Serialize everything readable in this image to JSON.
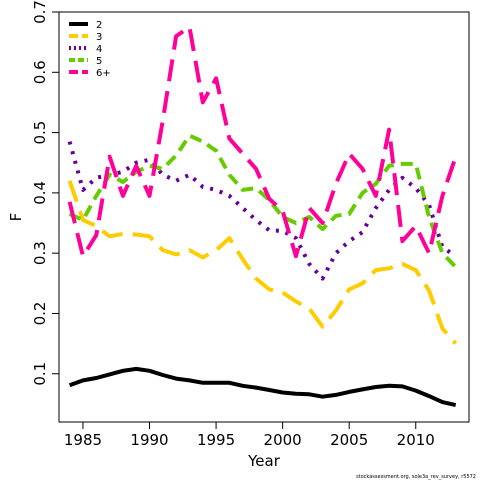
{
  "chart_data": {
    "type": "line",
    "xlabel": "Year",
    "ylabel": "F",
    "xlim": [
      1983.2,
      2014
    ],
    "ylim": [
      0.02,
      0.7
    ],
    "x_ticks": [
      1985,
      1990,
      1995,
      2000,
      2005,
      2010
    ],
    "y_ticks": [
      0.1,
      0.2,
      0.3,
      0.4,
      0.5,
      0.6,
      0.7
    ],
    "grid": false,
    "legend_position": "top-left",
    "x": [
      1984,
      1985,
      1986,
      1987,
      1988,
      1989,
      1990,
      1991,
      1992,
      1993,
      1994,
      1995,
      1996,
      1997,
      1998,
      1999,
      2000,
      2001,
      2002,
      2003,
      2004,
      2005,
      2006,
      2007,
      2008,
      2009,
      2010,
      2011,
      2012,
      2013
    ],
    "series": [
      {
        "name": "2",
        "color": "#000000",
        "dash": "solid",
        "values": [
          0.081,
          0.089,
          0.093,
          0.099,
          0.105,
          0.108,
          0.105,
          0.098,
          0.092,
          0.089,
          0.085,
          0.085,
          0.085,
          0.08,
          0.077,
          0.073,
          0.069,
          0.067,
          0.066,
          0.062,
          0.065,
          0.07,
          0.074,
          0.078,
          0.08,
          0.079,
          0.072,
          0.063,
          0.053,
          0.048
        ]
      },
      {
        "name": "3",
        "color": "#ffcc00",
        "dash": "long",
        "values": [
          0.42,
          0.355,
          0.345,
          0.328,
          0.332,
          0.331,
          0.328,
          0.305,
          0.298,
          0.305,
          0.293,
          0.305,
          0.325,
          0.29,
          0.258,
          0.24,
          0.235,
          0.22,
          0.208,
          0.178,
          0.205,
          0.24,
          0.25,
          0.272,
          0.275,
          0.282,
          0.272,
          0.238,
          0.175,
          0.15
        ]
      },
      {
        "name": "4",
        "color": "#660099",
        "dash": "dotted",
        "values": [
          0.485,
          0.405,
          0.425,
          0.43,
          0.435,
          0.45,
          0.455,
          0.43,
          0.42,
          0.43,
          0.41,
          0.405,
          0.395,
          0.375,
          0.355,
          0.338,
          0.337,
          0.325,
          0.282,
          0.258,
          0.3,
          0.32,
          0.335,
          0.375,
          0.405,
          0.425,
          0.408,
          0.38,
          0.31,
          0.295
        ]
      },
      {
        "name": "5",
        "color": "#66cc00",
        "dash": "short",
        "values": [
          0.365,
          0.355,
          0.395,
          0.43,
          0.418,
          0.435,
          0.445,
          0.44,
          0.462,
          0.495,
          0.485,
          0.47,
          0.43,
          0.405,
          0.408,
          0.388,
          0.36,
          0.35,
          0.36,
          0.34,
          0.362,
          0.365,
          0.4,
          0.415,
          0.445,
          0.448,
          0.448,
          0.36,
          0.3,
          0.277
        ]
      },
      {
        "name": "6+",
        "color": "#ff0099",
        "dash": "long",
        "values": [
          0.385,
          0.295,
          0.33,
          0.46,
          0.395,
          0.445,
          0.395,
          0.52,
          0.66,
          0.675,
          0.55,
          0.59,
          0.49,
          0.465,
          0.44,
          0.39,
          0.37,
          0.295,
          0.375,
          0.35,
          0.415,
          0.465,
          0.44,
          0.395,
          0.505,
          0.32,
          0.345,
          0.3,
          0.395,
          0.46
        ]
      }
    ]
  },
  "footer_text": "stockassessment.org, sole3a_rev_survey, r5572"
}
